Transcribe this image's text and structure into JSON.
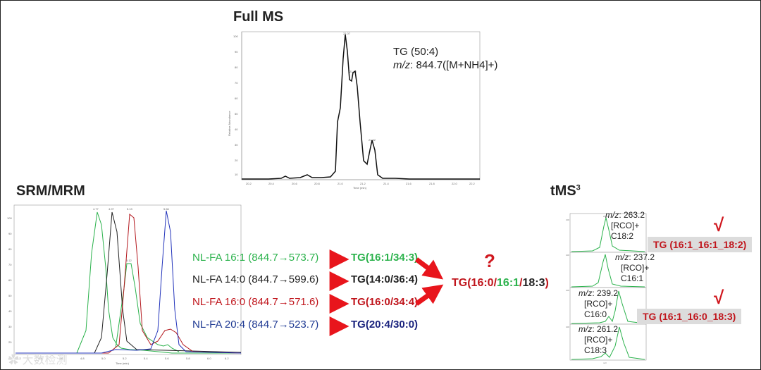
{
  "colors": {
    "green": "#2bb24c",
    "black": "#222222",
    "red": "#c0151c",
    "blue": "#1f3a93",
    "arrow": "#e8151c"
  },
  "full_ms": {
    "title": "Full MS",
    "compound": "TG (50:4)",
    "mz_italic": "m/z",
    "mz_value": ": 844.7([M+NH4]+)"
  },
  "srm": {
    "title": "SRM/MRM"
  },
  "tms": {
    "title": "tMS",
    "title_sup": "3",
    "panels": [
      {
        "mz_italic": "m/z",
        "mz_value": ": 263.2",
        "line1": "[RCO]+",
        "line2": "C18:2"
      },
      {
        "mz_italic": "m/z",
        "mz_value": ": 237.2",
        "line1": "[RCO]+",
        "line2": "C16:1"
      },
      {
        "mz_italic": "m/z",
        "mz_value": ": 239.2",
        "line1": "[RCO]+",
        "line2": "C16:0"
      },
      {
        "mz_italic": "m/z",
        "mz_value": ": 261.2",
        "line1": "[RCO]+",
        "line2": "C18:3"
      }
    ],
    "checks": [
      "√",
      "√"
    ],
    "tags": [
      "TG (16:1_16:1_18:2)",
      "TG (16:1_16:0_18:3)"
    ]
  },
  "rules": [
    {
      "text": "NL-FA 16:1 (844.7→573.7)",
      "color": "#2bb24c",
      "result_parts": [
        {
          "text": "TG(16:1/34:3)",
          "color": "#2bb24c"
        }
      ]
    },
    {
      "text": "NL-FA 14:0 (844.7→599.6)",
      "color": "#222222",
      "result_parts": [
        {
          "text": "TG(14:0/36:4)",
          "color": "#222222"
        }
      ]
    },
    {
      "text": "NL-FA 16:0 (844.7→571.6)",
      "color": "#c0151c",
      "result_parts": [
        {
          "text": "TG(16:0/34:4)",
          "color": "#c0151c"
        }
      ]
    },
    {
      "text": "NL-FA 20:4 (844.7→523.7)",
      "color": "#1f3a93",
      "result_parts": [
        {
          "text": "TG(20:4/30:0)",
          "color": "#1a237e"
        }
      ]
    }
  ],
  "conclusion": {
    "question": "?",
    "parts": [
      {
        "text": "TG(16:0/",
        "color": "#c0151c"
      },
      {
        "text": "16:1",
        "color": "#2bb24c"
      },
      {
        "text": "/",
        "color": "#c0151c"
      },
      {
        "text": "18:3",
        "color": "#222222"
      },
      {
        "text": ")",
        "color": "#c0151c"
      }
    ]
  },
  "watermark": "大数检测"
}
